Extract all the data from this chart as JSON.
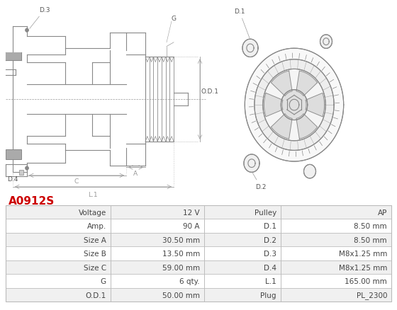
{
  "title": "A0912S",
  "title_color": "#cc0000",
  "background_color": "#ffffff",
  "rows": [
    [
      "Voltage",
      "12 V",
      "Pulley",
      "AP"
    ],
    [
      "Amp.",
      "90 A",
      "D.1",
      "8.50 mm"
    ],
    [
      "Size A",
      "30.50 mm",
      "D.2",
      "8.50 mm"
    ],
    [
      "Size B",
      "13.50 mm",
      "D.3",
      "M8x1.25 mm"
    ],
    [
      "Size C",
      "59.00 mm",
      "D.4",
      "M8x1.25 mm"
    ],
    [
      "G",
      "6 qty.",
      "L.1",
      "165.00 mm"
    ],
    [
      "O.D.1",
      "50.00 mm",
      "Plug",
      "PL_2300"
    ]
  ],
  "row_colors_odd": "#f0f0f0",
  "row_colors_even": "#ffffff",
  "text_color": "#444444",
  "border_color": "#bbbbbb",
  "line_color": "#888888",
  "dim_color": "#999999"
}
